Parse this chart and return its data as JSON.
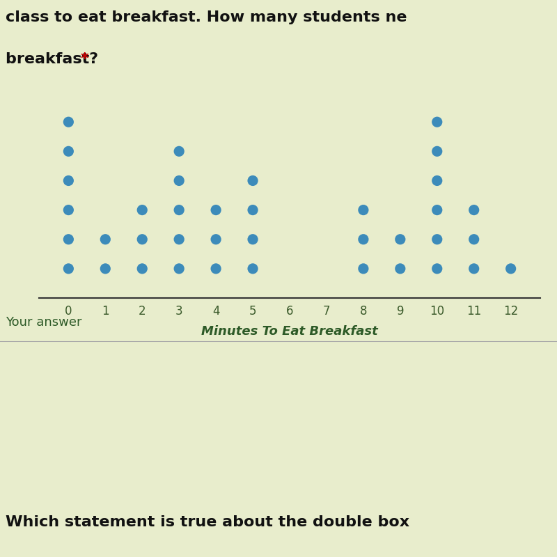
{
  "counts": {
    "0": 6,
    "1": 2,
    "2": 3,
    "3": 5,
    "4": 3,
    "5": 4,
    "6": 0,
    "7": 0,
    "8": 3,
    "9": 2,
    "10": 6,
    "11": 3,
    "12": 1
  },
  "xlabel": "Minutes To Eat Breakfast",
  "title_line1": "class to eat breakfast. How many students ne",
  "title_line2": "breakfast? *",
  "star_color": "#cc0000",
  "dot_color": "#2980b9",
  "axis_min": 0,
  "axis_max": 12,
  "dot_size": 120,
  "bg_color": "#e8edcc",
  "top_bg": "#f0f0e8",
  "xlabel_fontsize": 13,
  "tick_fontsize": 12,
  "title_fontsize": 16,
  "bottom_text": "Your answer",
  "bottom_text2": "Which statement is true about the double box",
  "answer_text_color": "#2d5a27",
  "tick_color": "#3a5a2a",
  "xlabel_color": "#2d5a27",
  "pink_band_color": "#e8c8c0",
  "line_color": "#aaaaaa",
  "title_color": "#111111",
  "bottom2_color": "#111111"
}
